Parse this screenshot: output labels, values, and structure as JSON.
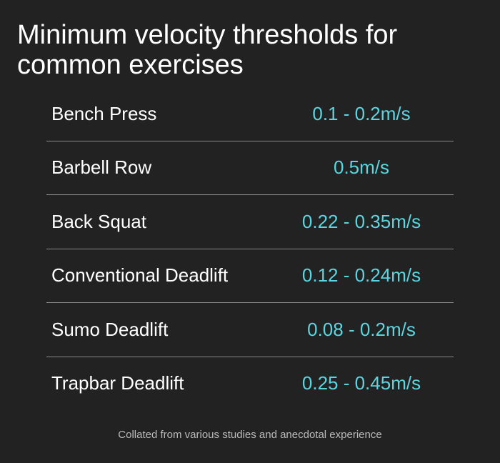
{
  "header": {
    "title": "Minimum velocity thresholds for common exercises"
  },
  "table": {
    "rows": [
      [
        "Bench Press",
        "0.1 - 0.2m/s"
      ],
      [
        "Barbell Row",
        "0.5m/s"
      ],
      [
        "Back Squat",
        "0.22 - 0.35m/s"
      ],
      [
        "Conventional Deadlift",
        "0.12 - 0.24m/s"
      ],
      [
        "Sumo Deadlift",
        "0.08 - 0.2m/s"
      ],
      [
        "Trapbar Deadlift",
        "0.25 - 0.45m/s"
      ]
    ]
  },
  "footer": {
    "note": "Collated from various studies and anecdotal experience"
  }
}
